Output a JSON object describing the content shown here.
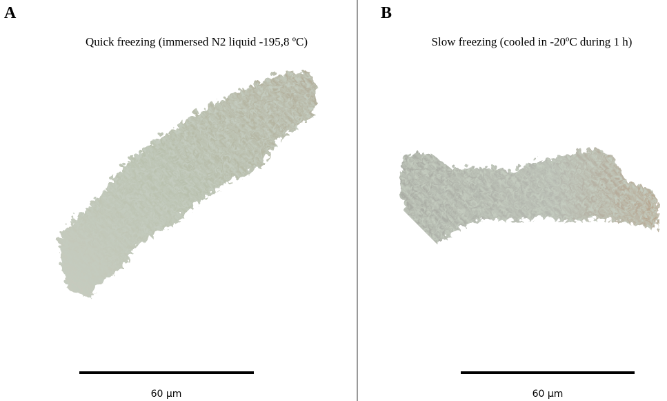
{
  "panels": [
    {
      "letter": "A",
      "caption": "Quick freezing (immersed N2 liquid -195,8 ºC)",
      "scale_label": "60 µm"
    },
    {
      "letter": "B",
      "caption": "Slow freezing (cooled in -20ºC during 1 h)",
      "scale_label": "60 µm"
    }
  ]
}
